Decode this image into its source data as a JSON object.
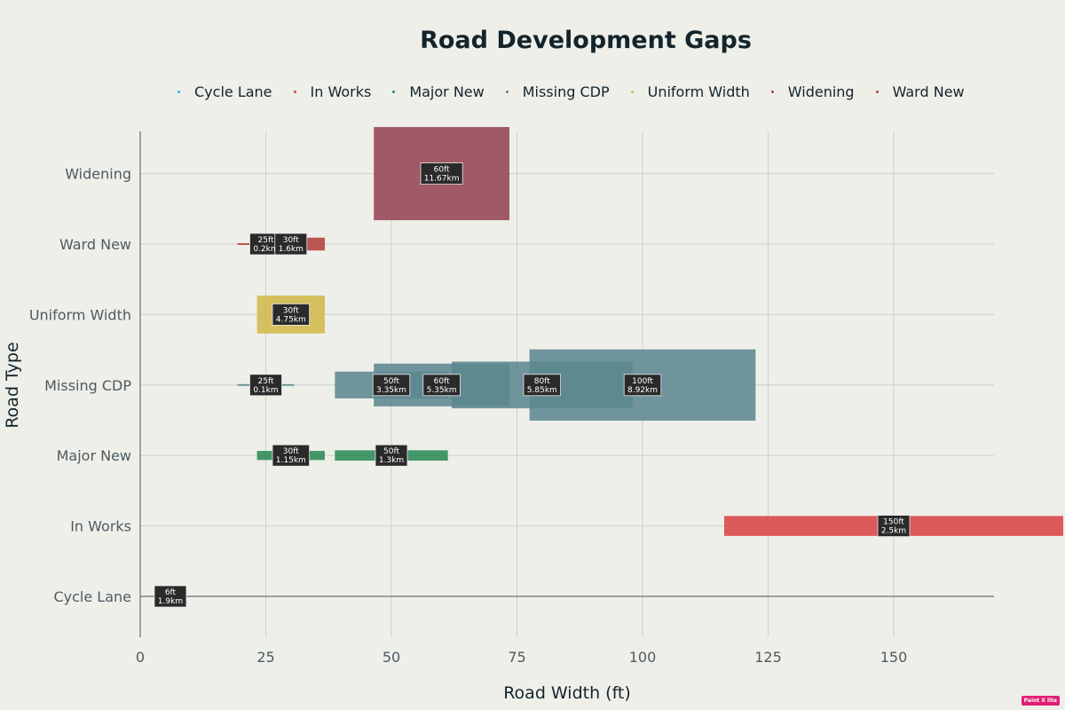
{
  "chart_data": {
    "type": "bar",
    "title": "Road Development Gaps",
    "xlabel": "Road Width (ft)",
    "ylabel": "Road Type",
    "xlim": [
      0,
      170
    ],
    "xticks": [
      0,
      25,
      50,
      75,
      100,
      125,
      150
    ],
    "categories": [
      "Cycle Lane",
      "In Works",
      "Major New",
      "Missing CDP",
      "Uniform Width",
      "Widening",
      "Ward New"
    ],
    "y_order": [
      "Cycle Lane",
      "In Works",
      "Major New",
      "Missing CDP",
      "Uniform Width",
      "Ward New",
      "Widening"
    ],
    "legend_placement": "top",
    "grid": true,
    "colors": {
      "Cycle Lane": "#1FB8CD",
      "In Works": "#DB4545",
      "Major New": "#2E8B57",
      "Missing CDP": "#5D878F",
      "Uniform Width": "#D2BA4C",
      "Widening": "#944454",
      "Ward New": "#B4413C"
    },
    "series": [
      {
        "name": "Cycle Lane",
        "points": [
          {
            "width_ft": 6,
            "length_km": 1.9,
            "label": "6ft\n1.9km"
          }
        ]
      },
      {
        "name": "In Works",
        "points": [
          {
            "width_ft": 150,
            "length_km": 2.5,
            "label": "150ft\n2.5km"
          }
        ]
      },
      {
        "name": "Major New",
        "points": [
          {
            "width_ft": 30,
            "length_km": 1.15,
            "label": "30ft\n1.15km"
          },
          {
            "width_ft": 50,
            "length_km": 1.3,
            "label": "50ft\n1.3km"
          }
        ]
      },
      {
        "name": "Missing CDP",
        "points": [
          {
            "width_ft": 25,
            "length_km": 0.1,
            "label": "25ft\n0.1km"
          },
          {
            "width_ft": 50,
            "length_km": 3.35,
            "label": "50ft\n3.35km"
          },
          {
            "width_ft": 60,
            "length_km": 5.35,
            "label": "60ft\n5.35km"
          },
          {
            "width_ft": 80,
            "length_km": 5.85,
            "label": "80ft\n5.85km"
          },
          {
            "width_ft": 100,
            "length_km": 8.92,
            "label": "100ft\n8.92km"
          }
        ]
      },
      {
        "name": "Uniform Width",
        "points": [
          {
            "width_ft": 30,
            "length_km": 4.75,
            "label": "30ft\n4.75km"
          }
        ]
      },
      {
        "name": "Widening",
        "points": [
          {
            "width_ft": 60,
            "length_km": 11.67,
            "label": "60ft\n11.67km"
          }
        ]
      },
      {
        "name": "Ward New",
        "points": [
          {
            "width_ft": 25,
            "length_km": 0.2,
            "label": "25ft\n0.2km"
          },
          {
            "width_ft": 30,
            "length_km": 1.6,
            "label": "30ft\n1.6km"
          }
        ]
      }
    ]
  },
  "ui": {
    "badge": "Paint X lite"
  }
}
